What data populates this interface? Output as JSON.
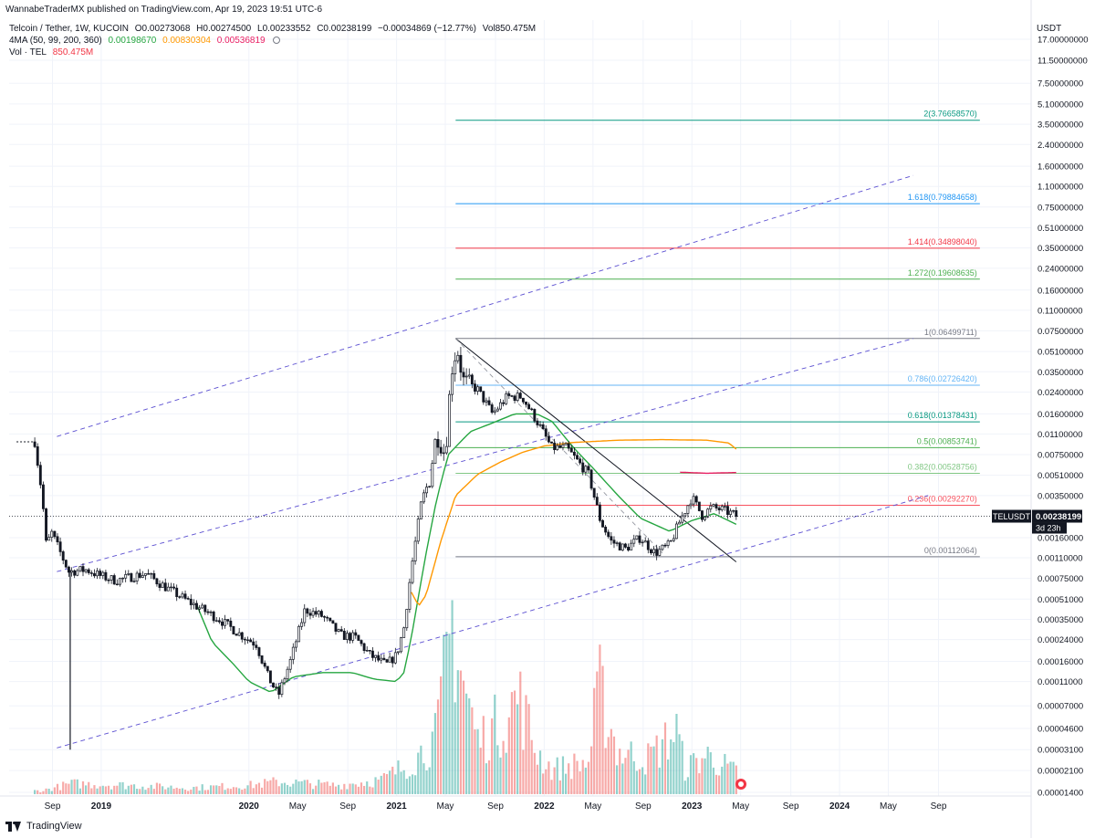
{
  "header": {
    "attribution": "WannabeTraderMX published on TradingView.com, Apr 19, 2023 19:51 UTC-6",
    "symbol_line": "Telcoin / Tether, 1W, KUCOIN",
    "ohlc": {
      "open": "O0.00273068",
      "high": "H0.00274500",
      "low": "L0.00233552",
      "close": "C0.00238199",
      "change": "−0.00034869 (−12.77%)",
      "volume": "Vol850.475M"
    },
    "ma_label": "4MA (50, 99, 200, 360)",
    "ma_values": [
      "0.00198670",
      "0.00830304",
      "0.00536819"
    ],
    "vol_label": "Vol · TEL",
    "vol_value": "850.475M"
  },
  "price_axis": {
    "unit": "USDT",
    "ticks": [
      "17.00000000",
      "11.50000000",
      "7.50000000",
      "5.10000000",
      "3.50000000",
      "2.40000000",
      "1.60000000",
      "1.10000000",
      "0.75000000",
      "0.51000000",
      "0.35000000",
      "0.24000000",
      "0.16000000",
      "0.11000000",
      "0.07500000",
      "0.05100000",
      "0.03500000",
      "0.02400000",
      "0.01600000",
      "0.01100000",
      "0.00750000",
      "0.00510000",
      "0.00350000",
      "0.00160000",
      "0.00110000",
      "0.00075000",
      "0.00051000",
      "0.00035000",
      "0.00024000",
      "0.00016000",
      "0.00011000",
      "0.00007000",
      "0.00004600",
      "0.00003100",
      "0.00002100",
      "0.00001400"
    ],
    "tick_values": [
      17,
      11.5,
      7.5,
      5.1,
      3.5,
      2.4,
      1.6,
      1.1,
      0.75,
      0.51,
      0.35,
      0.24,
      0.16,
      0.11,
      0.075,
      0.051,
      0.035,
      0.024,
      0.016,
      0.011,
      0.0075,
      0.0051,
      0.0035,
      0.0016,
      0.0011,
      0.00075,
      0.00051,
      0.00035,
      0.00024,
      0.00016,
      0.00011,
      7e-05,
      4.6e-05,
      3.1e-05,
      2.1e-05,
      1.4e-05
    ],
    "current_label": "TELUSDT",
    "current_price": "0.00238199",
    "countdown": "3d 23h"
  },
  "time_axis": {
    "ticks": [
      {
        "label": "2019",
        "t": 2019.0,
        "bold": true
      },
      {
        "label": "Sep",
        "t": 2018.67,
        "bold": false
      },
      {
        "label": "2020",
        "t": 2020.0,
        "bold": true
      },
      {
        "label": "May",
        "t": 2020.33,
        "bold": false
      },
      {
        "label": "Sep",
        "t": 2020.67,
        "bold": false
      },
      {
        "label": "2021",
        "t": 2021.0,
        "bold": true
      },
      {
        "label": "May",
        "t": 2021.33,
        "bold": false
      },
      {
        "label": "Sep",
        "t": 2021.67,
        "bold": false
      },
      {
        "label": "2022",
        "t": 2022.0,
        "bold": true
      },
      {
        "label": "May",
        "t": 2022.33,
        "bold": false
      },
      {
        "label": "Sep",
        "t": 2022.67,
        "bold": false
      },
      {
        "label": "2023",
        "t": 2023.0,
        "bold": true
      },
      {
        "label": "May",
        "t": 2023.33,
        "bold": false
      },
      {
        "label": "Sep",
        "t": 2023.67,
        "bold": false
      },
      {
        "label": "2024",
        "t": 2024.0,
        "bold": true
      },
      {
        "label": "May",
        "t": 2024.33,
        "bold": false
      },
      {
        "label": "Sep",
        "t": 2024.67,
        "bold": false
      }
    ]
  },
  "chart_data": {
    "type": "candlestick",
    "title": "Telcoin / Tether, 1W, KUCOIN",
    "y_scale": "log",
    "ylim": [
      1.2e-05,
      20
    ],
    "xlim": [
      2018.45,
      2024.95
    ],
    "price_key_points": [
      [
        2018.55,
        0.0095
      ],
      [
        2018.6,
        0.0035
      ],
      [
        2018.63,
        0.0013
      ],
      [
        2018.66,
        0.0018
      ],
      [
        2018.78,
        0.00085
      ],
      [
        2018.9,
        0.00088
      ],
      [
        2019.0,
        0.00078
      ],
      [
        2019.1,
        0.00072
      ],
      [
        2019.3,
        0.00082
      ],
      [
        2019.45,
        0.00062
      ],
      [
        2019.6,
        0.00048
      ],
      [
        2019.8,
        0.00035
      ],
      [
        2019.95,
        0.00026
      ],
      [
        2020.05,
        0.00022
      ],
      [
        2020.13,
        0.00012
      ],
      [
        2020.2,
        8.5e-05
      ],
      [
        2020.28,
        0.00016
      ],
      [
        2020.38,
        0.00042
      ],
      [
        2020.5,
        0.00037
      ],
      [
        2020.62,
        0.00026
      ],
      [
        2020.72,
        0.00025
      ],
      [
        2020.82,
        0.00018
      ],
      [
        2020.93,
        0.00015
      ],
      [
        2021.0,
        0.00018
      ],
      [
        2021.05,
        0.0003
      ],
      [
        2021.1,
        0.0009
      ],
      [
        2021.17,
        0.0032
      ],
      [
        2021.22,
        0.0045
      ],
      [
        2021.27,
        0.011
      ],
      [
        2021.33,
        0.0075
      ],
      [
        2021.37,
        0.035
      ],
      [
        2021.41,
        0.055
      ],
      [
        2021.45,
        0.03
      ],
      [
        2021.55,
        0.025
      ],
      [
        2021.65,
        0.016
      ],
      [
        2021.75,
        0.022
      ],
      [
        2021.85,
        0.022
      ],
      [
        2021.95,
        0.014
      ],
      [
        2022.05,
        0.0085
      ],
      [
        2022.15,
        0.0085
      ],
      [
        2022.3,
        0.0052
      ],
      [
        2022.38,
        0.0022
      ],
      [
        2022.45,
        0.0015
      ],
      [
        2022.55,
        0.0013
      ],
      [
        2022.65,
        0.0016
      ],
      [
        2022.75,
        0.0012
      ],
      [
        2022.85,
        0.0014
      ],
      [
        2022.92,
        0.0022
      ],
      [
        2023.0,
        0.0034
      ],
      [
        2023.07,
        0.0024
      ],
      [
        2023.13,
        0.0028
      ],
      [
        2023.2,
        0.0027
      ],
      [
        2023.27,
        0.0025
      ],
      [
        2023.3,
        0.0024
      ]
    ],
    "current_price": 0.00238199,
    "moving_averages": [
      {
        "name": "MA 50",
        "color": "#26a641",
        "points": [
          [
            2019.65,
            0.00045
          ],
          [
            2019.75,
            0.00023
          ],
          [
            2019.9,
            0.00015
          ],
          [
            2020.0,
            0.00011
          ],
          [
            2020.15,
            9e-05
          ],
          [
            2020.3,
            0.00012
          ],
          [
            2020.5,
            0.00013
          ],
          [
            2020.7,
            0.00013
          ],
          [
            2020.85,
            0.000115
          ],
          [
            2021.0,
            0.00011
          ],
          [
            2021.05,
            0.00013
          ],
          [
            2021.1,
            0.00025
          ],
          [
            2021.15,
            0.00055
          ],
          [
            2021.2,
            0.0012
          ],
          [
            2021.27,
            0.0032
          ],
          [
            2021.35,
            0.0075
          ],
          [
            2021.5,
            0.0115
          ],
          [
            2021.65,
            0.0135
          ],
          [
            2021.8,
            0.016
          ],
          [
            2021.95,
            0.016
          ],
          [
            2022.05,
            0.014
          ],
          [
            2022.2,
            0.0085
          ],
          [
            2022.35,
            0.0055
          ],
          [
            2022.5,
            0.0035
          ],
          [
            2022.65,
            0.0023
          ],
          [
            2022.85,
            0.0018
          ],
          [
            2023.0,
            0.0022
          ],
          [
            2023.15,
            0.0025
          ],
          [
            2023.3,
            0.00205
          ]
        ]
      },
      {
        "name": "MA 99",
        "color": "#ff9800",
        "points": [
          [
            2021.1,
            0.00058
          ],
          [
            2021.15,
            0.00045
          ],
          [
            2021.2,
            0.00055
          ],
          [
            2021.3,
            0.0015
          ],
          [
            2021.4,
            0.0035
          ],
          [
            2021.55,
            0.0052
          ],
          [
            2021.7,
            0.0065
          ],
          [
            2021.85,
            0.0078
          ],
          [
            2022.0,
            0.0088
          ],
          [
            2022.2,
            0.0094
          ],
          [
            2022.5,
            0.0098
          ],
          [
            2022.8,
            0.0099
          ],
          [
            2023.1,
            0.0098
          ],
          [
            2023.25,
            0.0093
          ],
          [
            2023.3,
            0.0083
          ]
        ]
      },
      {
        "name": "MA 200",
        "color": "#e91e63",
        "points": [
          [
            2022.92,
            0.0054
          ],
          [
            2023.1,
            0.0053
          ],
          [
            2023.3,
            0.00537
          ]
        ]
      }
    ],
    "fibonacci": {
      "x_start": 2021.4,
      "x_end": 2024.95,
      "levels": [
        {
          "ratio": "2",
          "value": "3.76658570",
          "price": 3.7665857,
          "color": "#089981"
        },
        {
          "ratio": "1.618",
          "value": "0.79884658",
          "price": 0.79884658,
          "color": "#2196f3"
        },
        {
          "ratio": "1.414",
          "value": "0.34898040",
          "price": 0.3489804,
          "color": "#f23645"
        },
        {
          "ratio": "1.272",
          "value": "0.19608635",
          "price": 0.19608635,
          "color": "#4caf50"
        },
        {
          "ratio": "1",
          "value": "0.06499711",
          "price": 0.06499711,
          "color": "#787b86"
        },
        {
          "ratio": "0.786",
          "value": "0.02726420",
          "price": 0.0272642,
          "color": "#64b5f6"
        },
        {
          "ratio": "0.618",
          "value": "0.01378431",
          "price": 0.01378431,
          "color": "#089981"
        },
        {
          "ratio": "0.5",
          "value": "0.00853741",
          "price": 0.00853741,
          "color": "#4caf50"
        },
        {
          "ratio": "0.382",
          "value": "0.00528756",
          "price": 0.00528756,
          "color": "#81c784"
        },
        {
          "ratio": "0.236",
          "value": "0.00292270",
          "price": 0.0029227,
          "color": "#f7525f"
        },
        {
          "ratio": "0",
          "value": "0.00112064",
          "price": 0.00112064,
          "color": "#787b86"
        }
      ]
    },
    "channel_lines": [
      {
        "style": "dashed",
        "color": "#5b4fd1",
        "from": [
          2018.7,
          0.0105
        ],
        "to": [
          2024.5,
          1.35
        ]
      },
      {
        "style": "dashed",
        "color": "#5b4fd1",
        "from": [
          2018.7,
          0.00085
        ],
        "to": [
          2024.5,
          0.065
        ]
      },
      {
        "style": "dashed",
        "color": "#5b4fd1",
        "from": [
          2018.7,
          3.2e-05
        ],
        "to": [
          2024.6,
          0.0035
        ]
      }
    ],
    "trend_lines": [
      {
        "style": "solid",
        "color": "#131722",
        "from": [
          2021.4,
          0.065
        ],
        "to": [
          2023.3,
          0.00102
        ]
      },
      {
        "style": "dashed",
        "color": "#9598a1",
        "from": [
          2021.4,
          0.065
        ],
        "to": [
          2022.8,
          0.0012
        ]
      }
    ],
    "volume_key_points": [
      [
        2018.6,
        1.0
      ],
      [
        2018.8,
        3.0
      ],
      [
        2019.2,
        2.5
      ],
      [
        2019.6,
        1.8
      ],
      [
        2020.0,
        2.5
      ],
      [
        2020.2,
        3.5
      ],
      [
        2020.6,
        2.5
      ],
      [
        2020.9,
        4.0
      ],
      [
        2021.1,
        9
      ],
      [
        2021.27,
        16
      ],
      [
        2021.38,
        50
      ],
      [
        2021.45,
        32
      ],
      [
        2021.55,
        15
      ],
      [
        2021.75,
        22
      ],
      [
        2021.82,
        28
      ],
      [
        2021.95,
        12
      ],
      [
        2022.05,
        7
      ],
      [
        2022.3,
        9
      ],
      [
        2022.37,
        30
      ],
      [
        2022.5,
        12
      ],
      [
        2022.7,
        10
      ],
      [
        2022.9,
        18
      ],
      [
        2022.95,
        7
      ],
      [
        2023.1,
        11
      ],
      [
        2023.3,
        6
      ]
    ],
    "volume_scale_max": 50
  }
}
